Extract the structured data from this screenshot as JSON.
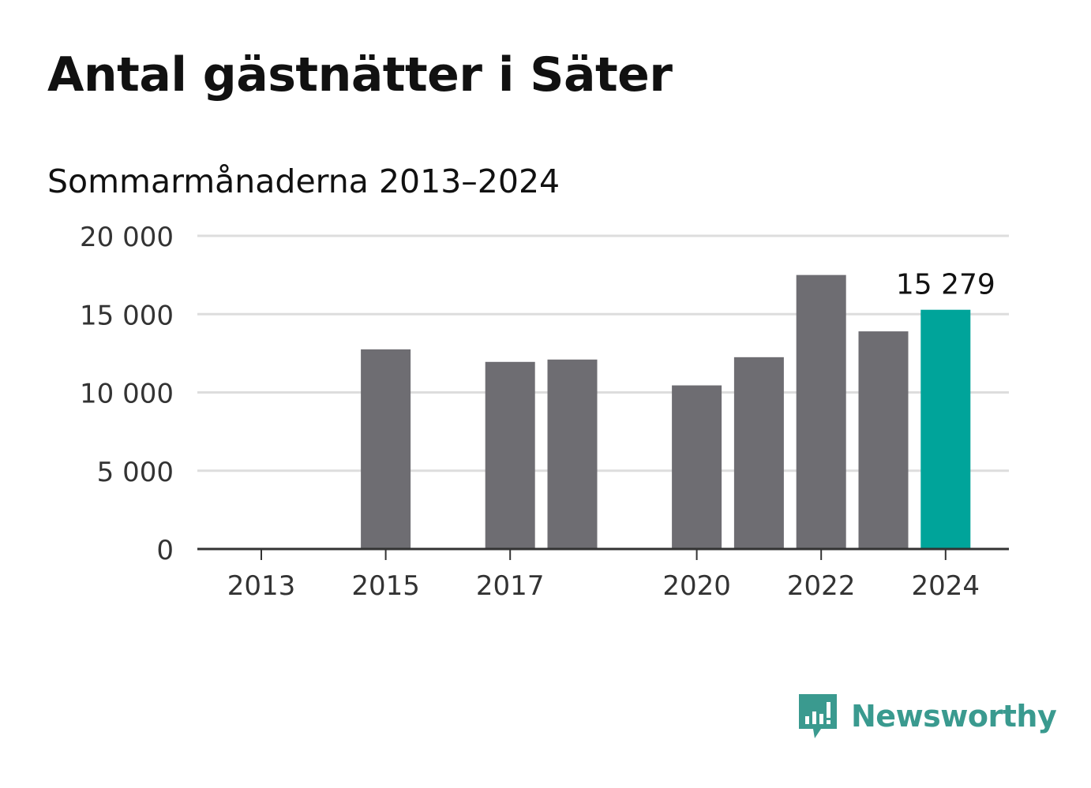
{
  "chart_data": {
    "type": "bar",
    "title": "Antal gästnätter i Säter",
    "subtitle": "Sommarmånaderna 2013–2024",
    "categories": [
      "2013",
      "2014",
      "2015",
      "2016",
      "2017",
      "2018",
      "2019",
      "2020",
      "2021",
      "2022",
      "2023",
      "2024"
    ],
    "values": [
      null,
      null,
      12750,
      null,
      11950,
      12100,
      null,
      10450,
      12250,
      17500,
      13900,
      15279
    ],
    "tick_labels_x": [
      "2013",
      "2015",
      "2017",
      "2020",
      "2022",
      "2024"
    ],
    "tick_labels_y": [
      "0",
      "5 000",
      "10 000",
      "15 000",
      "20 000"
    ],
    "y_ticks": [
      0,
      5000,
      10000,
      15000,
      20000
    ],
    "ylim": [
      0,
      20000
    ],
    "highlight_category": "2024",
    "highlight_label": "15 279",
    "grid": true,
    "colors": {
      "bar": "#6e6d72",
      "highlight": "#00a49a",
      "grid": "#dddddd",
      "axis": "#333333"
    }
  },
  "brand": {
    "name": "Newsworthy",
    "color": "#3a9a8f"
  }
}
